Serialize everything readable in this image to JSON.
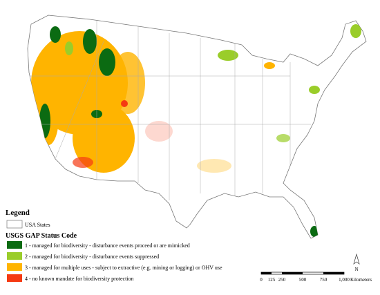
{
  "legend": {
    "title": "Legend",
    "states_label": "USA States",
    "status_title": "USGS GAP Status Code",
    "items": [
      {
        "label": "1 - managed for biodiversity - disturbance events proceed or are mimicked",
        "color": "#0b6b12"
      },
      {
        "label": "2 - managed for biodiversity - disturbance events suppressed",
        "color": "#9acd2a"
      },
      {
        "label": "3 - managed for multiple uses - subject to extractive (e.g. mining or logging) or OHV use",
        "color": "#ffb400"
      },
      {
        "label": "4 - no known mandate for biodiversity protection",
        "color": "#f53a12"
      }
    ]
  },
  "scale_bar": {
    "ticks": [
      "0",
      "125",
      "250",
      "500",
      "750",
      "1,000"
    ],
    "unit": "Kilometers"
  },
  "north_arrow": {
    "label": "N"
  }
}
